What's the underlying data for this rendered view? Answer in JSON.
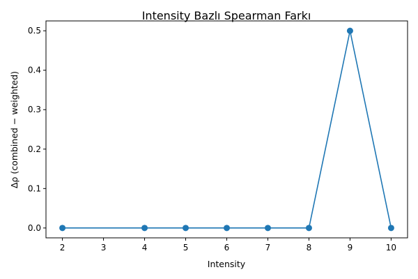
{
  "chart_data": {
    "type": "line",
    "title": "Intensity Bazlı Spearman Farkı",
    "xlabel": "Intensity",
    "ylabel": "Δρ (combined − weighted)",
    "x": [
      2,
      4,
      5,
      6,
      7,
      8,
      9,
      10
    ],
    "series": [
      {
        "values": [
          0.0,
          0.0,
          0.0,
          0.0,
          0.0,
          0.0,
          0.5,
          0.0
        ],
        "color": "#1f77b4",
        "marker": "circle"
      }
    ],
    "xlim": [
      1.6,
      10.4
    ],
    "ylim": [
      -0.025,
      0.525
    ],
    "xticks": [
      2,
      3,
      4,
      5,
      6,
      7,
      8,
      9,
      10
    ],
    "xtick_labels": [
      "2",
      "3",
      "4",
      "5",
      "6",
      "7",
      "8",
      "9",
      "10"
    ],
    "yticks": [
      0.0,
      0.1,
      0.2,
      0.3,
      0.4,
      0.5
    ],
    "ytick_labels": [
      "0.0",
      "0.1",
      "0.2",
      "0.3",
      "0.4",
      "0.5"
    ],
    "grid": false,
    "legend": "none"
  }
}
